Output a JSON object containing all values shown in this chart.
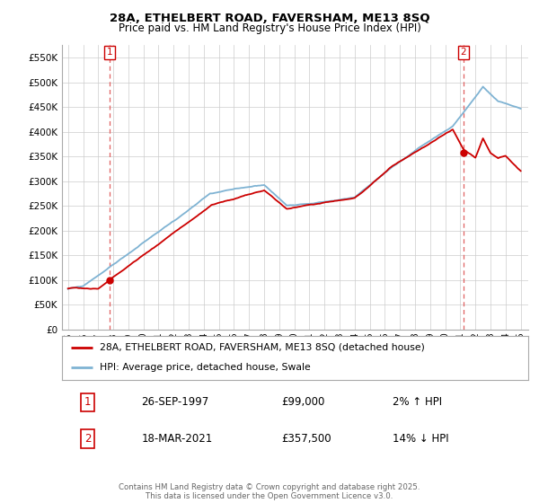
{
  "title_line1": "28A, ETHELBERT ROAD, FAVERSHAM, ME13 8SQ",
  "title_line2": "Price paid vs. HM Land Registry's House Price Index (HPI)",
  "ylim": [
    0,
    575000
  ],
  "yticks": [
    0,
    50000,
    100000,
    150000,
    200000,
    250000,
    300000,
    350000,
    400000,
    450000,
    500000,
    550000
  ],
  "ytick_labels": [
    "£0",
    "£50K",
    "£100K",
    "£150K",
    "£200K",
    "£250K",
    "£300K",
    "£350K",
    "£400K",
    "£450K",
    "£500K",
    "£550K"
  ],
  "xmin": 1994.6,
  "xmax": 2025.5,
  "marker1_x": 1997.74,
  "marker1_y": 99000,
  "marker1_label": "1",
  "marker2_x": 2021.21,
  "marker2_y": 357500,
  "marker2_label": "2",
  "legend_line1": "28A, ETHELBERT ROAD, FAVERSHAM, ME13 8SQ (detached house)",
  "legend_line2": "HPI: Average price, detached house, Swale",
  "annotation1_num": "1",
  "annotation1_date": "26-SEP-1997",
  "annotation1_price": "£99,000",
  "annotation1_hpi": "2% ↑ HPI",
  "annotation2_num": "2",
  "annotation2_date": "18-MAR-2021",
  "annotation2_price": "£357,500",
  "annotation2_hpi": "14% ↓ HPI",
  "footnote": "Contains HM Land Registry data © Crown copyright and database right 2025.\nThis data is licensed under the Open Government Licence v3.0.",
  "line_color_red": "#cc0000",
  "line_color_blue": "#7fb3d3",
  "background_color": "#ffffff",
  "grid_color": "#cccccc",
  "box_color": "#cc0000"
}
